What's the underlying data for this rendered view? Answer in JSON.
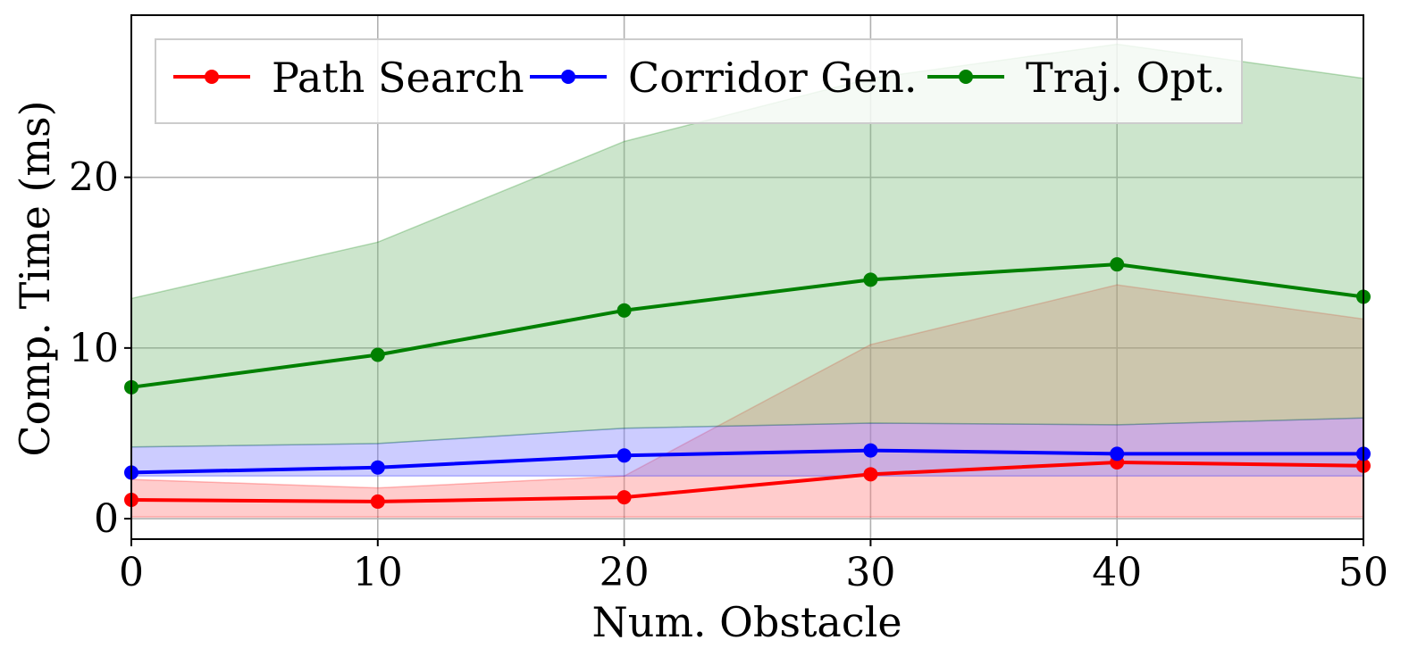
{
  "chart_data": {
    "type": "line",
    "xlabel": "Num. Obstacle",
    "ylabel": "Comp. Time (ms)",
    "x": [
      0,
      10,
      20,
      30,
      40,
      50
    ],
    "x_ticks": [
      0,
      10,
      20,
      30,
      40,
      50
    ],
    "y_ticks": [
      0,
      10,
      20
    ],
    "xlim": [
      0,
      50
    ],
    "ylim": [
      -1.2,
      29.5
    ],
    "grid": true,
    "legend": {
      "placement": "top",
      "columns": 3
    },
    "series": [
      {
        "name": "Path Search",
        "color": "#ff0000",
        "fill_color": "#ff8080",
        "values": [
          1.1,
          1.0,
          1.25,
          2.6,
          3.3,
          3.1
        ],
        "band_lower": [
          0.1,
          0.1,
          0.1,
          0.1,
          0.1,
          0.1
        ],
        "band_upper": [
          2.3,
          1.8,
          2.5,
          10.2,
          13.7,
          11.7
        ]
      },
      {
        "name": "Corridor Gen.",
        "color": "#0000ff",
        "fill_color": "#8080ff",
        "values": [
          2.7,
          3.0,
          3.7,
          4.0,
          3.8,
          3.8
        ],
        "band_lower": [
          2.5,
          2.5,
          2.5,
          2.5,
          2.5,
          2.5
        ],
        "band_upper": [
          4.2,
          4.4,
          5.3,
          5.6,
          5.5,
          5.9
        ]
      },
      {
        "name": "Traj. Opt.",
        "color": "#008000",
        "fill_color": "#7fbf7f",
        "values": [
          7.7,
          9.6,
          12.2,
          14.0,
          14.9,
          13.0
        ],
        "band_lower": [
          4.2,
          4.4,
          5.3,
          5.6,
          5.5,
          5.9
        ],
        "band_upper": [
          12.9,
          16.2,
          22.1,
          25.8,
          27.8,
          25.8
        ]
      }
    ]
  }
}
